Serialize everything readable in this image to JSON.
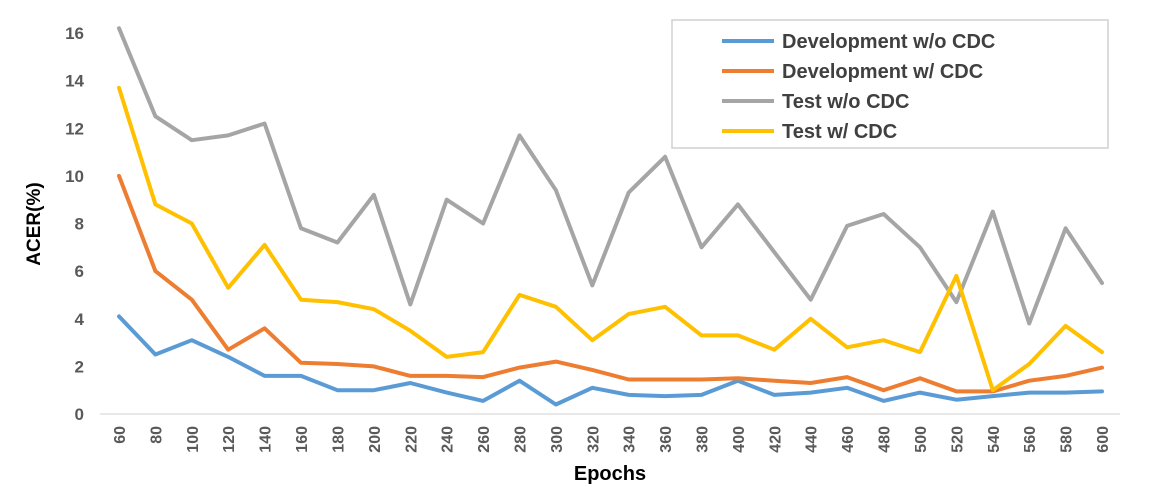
{
  "chart_data": {
    "type": "line",
    "xlabel": "Epochs",
    "ylabel": "ACER(%)",
    "ylim": [
      0,
      16
    ],
    "yticks": [
      0,
      2,
      4,
      6,
      8,
      10,
      12,
      14,
      16
    ],
    "grid": false,
    "legend_position": "top-right",
    "categories": [
      "60",
      "80",
      "100",
      "120",
      "140",
      "160",
      "180",
      "200",
      "220",
      "240",
      "260",
      "280",
      "300",
      "320",
      "340",
      "360",
      "380",
      "400",
      "420",
      "440",
      "460",
      "480",
      "500",
      "520",
      "540",
      "560",
      "580",
      "600"
    ],
    "series": [
      {
        "name": "Development w/o CDC",
        "color": "#5b9bd5",
        "values": [
          4.1,
          2.5,
          3.1,
          2.4,
          1.6,
          1.6,
          1.0,
          1.0,
          1.3,
          0.9,
          0.55,
          1.4,
          0.4,
          1.1,
          0.8,
          0.75,
          0.8,
          1.4,
          0.8,
          0.9,
          1.1,
          0.55,
          0.9,
          0.6,
          0.75,
          0.9,
          0.9,
          0.95
        ]
      },
      {
        "name": "Development w/ CDC",
        "color": "#ed7d31",
        "values": [
          10.0,
          6.0,
          4.8,
          2.7,
          3.6,
          2.15,
          2.1,
          2.0,
          1.6,
          1.6,
          1.55,
          1.95,
          2.2,
          1.85,
          1.45,
          1.45,
          1.45,
          1.5,
          1.4,
          1.3,
          1.55,
          1.0,
          1.5,
          0.95,
          0.95,
          1.4,
          1.6,
          1.95
        ]
      },
      {
        "name": "Test w/o CDC",
        "color": "#a5a5a5",
        "values": [
          16.2,
          12.5,
          11.5,
          11.7,
          12.2,
          7.8,
          7.2,
          9.2,
          4.6,
          9.0,
          8.0,
          11.7,
          9.4,
          5.4,
          9.3,
          10.8,
          7.0,
          8.8,
          6.8,
          4.8,
          7.9,
          8.4,
          7.0,
          4.7,
          8.5,
          3.8,
          7.8,
          5.5
        ]
      },
      {
        "name": "Test w/ CDC",
        "color": "#ffc000",
        "values": [
          13.7,
          8.8,
          8.0,
          5.3,
          7.1,
          4.8,
          4.7,
          4.4,
          3.5,
          2.4,
          2.6,
          5.0,
          4.5,
          3.1,
          4.2,
          4.5,
          3.3,
          3.3,
          2.7,
          4.0,
          2.8,
          3.1,
          2.6,
          5.8,
          1.0,
          2.1,
          3.7,
          2.6
        ]
      }
    ]
  }
}
